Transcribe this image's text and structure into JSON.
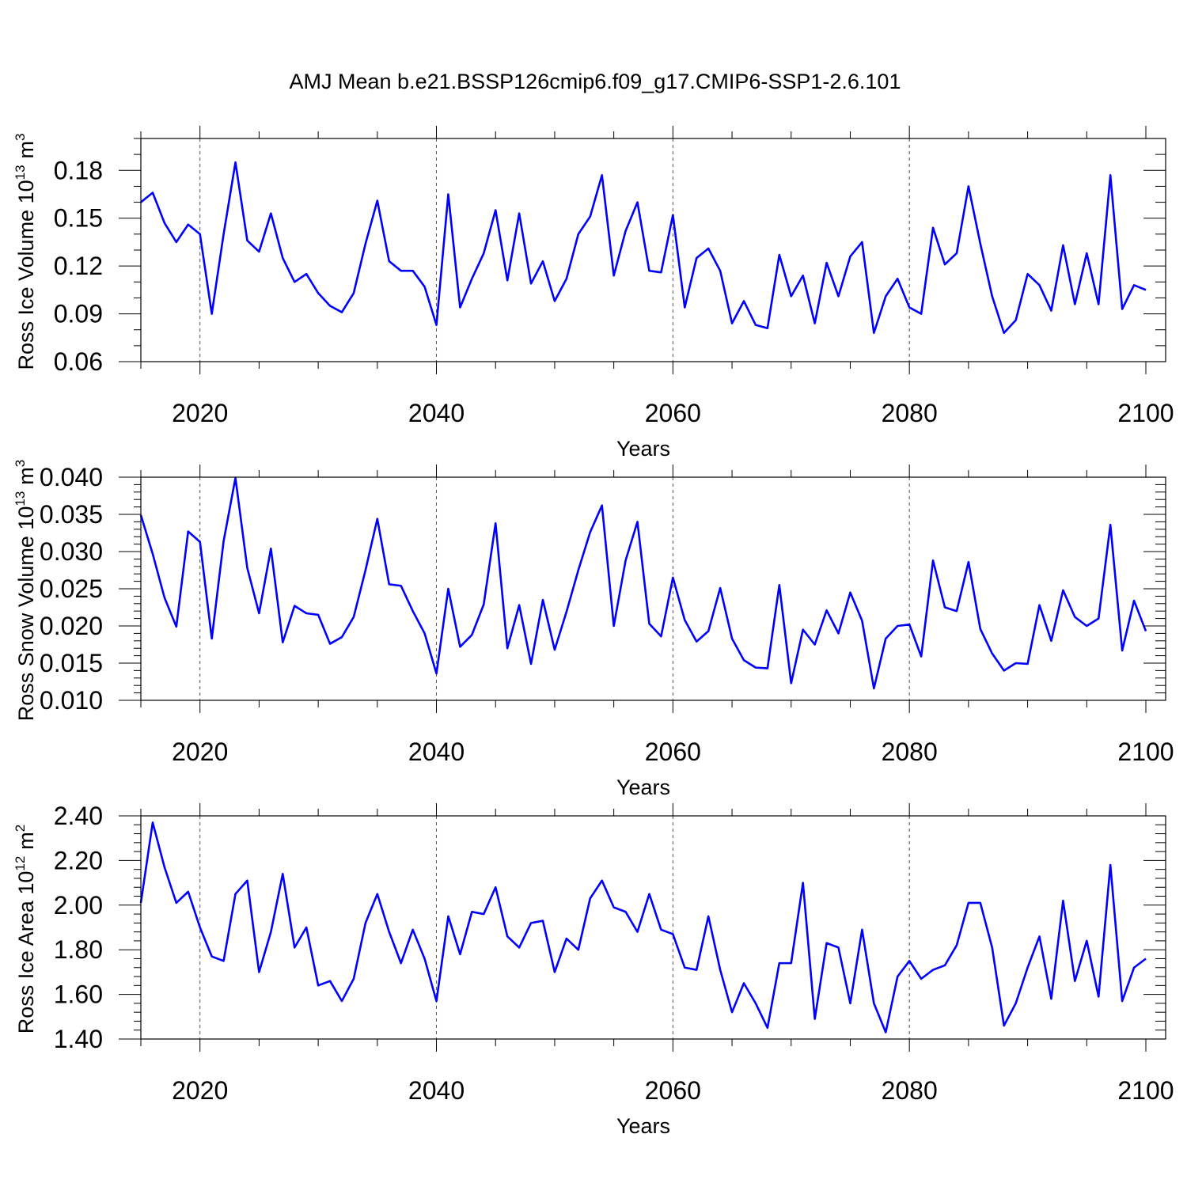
{
  "title": "AMJ Mean b.e21.BSSP126cmip6.f09_g17.CMIP6-SSP1-2.6.101",
  "chart_data": [
    {
      "type": "line",
      "ylabel_main": "Ross Ice Volume 10",
      "ylabel_exp": "13",
      "ylabel_unit": "m",
      "ylabel_unit_exp": "3",
      "xlabel": "Years",
      "xlim": [
        2015,
        2100
      ],
      "ylim": [
        0.06,
        0.2
      ],
      "yticks": [
        0.06,
        0.09,
        0.12,
        0.15,
        0.18
      ],
      "ytick_labels": [
        "0.06",
        "0.09",
        "0.12",
        "0.15",
        "0.18"
      ],
      "yminor_step": 0.01,
      "xticks": [
        2020,
        2040,
        2060,
        2080,
        2100
      ],
      "xtick_labels": [
        "2020",
        "2040",
        "2060",
        "2080",
        "2100"
      ],
      "line_color": "#0000ff",
      "x_start": 2015,
      "values": [
        0.16,
        0.166,
        0.147,
        0.135,
        0.146,
        0.14,
        0.09,
        0.14,
        0.185,
        0.136,
        0.129,
        0.153,
        0.125,
        0.11,
        0.115,
        0.103,
        0.095,
        0.091,
        0.103,
        0.134,
        0.161,
        0.123,
        0.117,
        0.117,
        0.107,
        0.083,
        0.165,
        0.094,
        0.112,
        0.128,
        0.155,
        0.111,
        0.153,
        0.109,
        0.123,
        0.098,
        0.112,
        0.14,
        0.151,
        0.177,
        0.114,
        0.142,
        0.16,
        0.117,
        0.116,
        0.152,
        0.094,
        0.125,
        0.131,
        0.117,
        0.084,
        0.098,
        0.083,
        0.081,
        0.127,
        0.101,
        0.114,
        0.084,
        0.122,
        0.101,
        0.126,
        0.135,
        0.078,
        0.101,
        0.112,
        0.094,
        0.09,
        0.144,
        0.121,
        0.128,
        0.17,
        0.134,
        0.101,
        0.078,
        0.086,
        0.115,
        0.108,
        0.092,
        0.133,
        0.096,
        0.128,
        0.096,
        0.177,
        0.093,
        0.108,
        0.105
      ]
    },
    {
      "type": "line",
      "ylabel_main": "Ross Snow Volume 10",
      "ylabel_exp": "13",
      "ylabel_unit": "m",
      "ylabel_unit_exp": "3",
      "xlabel": "Years",
      "xlim": [
        2015,
        2100
      ],
      "ylim": [
        0.01,
        0.04
      ],
      "yticks": [
        0.01,
        0.015,
        0.02,
        0.025,
        0.03,
        0.035,
        0.04
      ],
      "ytick_labels": [
        "0.010",
        "0.015",
        "0.020",
        "0.025",
        "0.030",
        "0.035",
        "0.040"
      ],
      "yminor_step": 0.001,
      "xticks": [
        2020,
        2040,
        2060,
        2080,
        2100
      ],
      "xtick_labels": [
        "2020",
        "2040",
        "2060",
        "2080",
        "2100"
      ],
      "line_color": "#0000ff",
      "x_start": 2015,
      "values": [
        0.0349,
        0.0297,
        0.0238,
        0.0199,
        0.0327,
        0.0313,
        0.0183,
        0.0314,
        0.0399,
        0.0278,
        0.0217,
        0.0304,
        0.0178,
        0.0227,
        0.0217,
        0.0215,
        0.0176,
        0.0185,
        0.0212,
        0.0275,
        0.0344,
        0.0256,
        0.0254,
        0.022,
        0.019,
        0.0136,
        0.025,
        0.0172,
        0.0188,
        0.0229,
        0.0338,
        0.017,
        0.0228,
        0.0149,
        0.0235,
        0.0168,
        0.0219,
        0.0275,
        0.0326,
        0.0362,
        0.02,
        0.0288,
        0.034,
        0.0203,
        0.0186,
        0.0265,
        0.0208,
        0.0179,
        0.0193,
        0.0251,
        0.0183,
        0.0154,
        0.0144,
        0.0143,
        0.0255,
        0.0123,
        0.0195,
        0.0175,
        0.0221,
        0.019,
        0.0245,
        0.0207,
        0.0116,
        0.0183,
        0.02,
        0.0202,
        0.0159,
        0.0288,
        0.0225,
        0.022,
        0.0286,
        0.0196,
        0.0163,
        0.014,
        0.015,
        0.0149,
        0.0228,
        0.018,
        0.0248,
        0.0212,
        0.02,
        0.021,
        0.0336,
        0.0167,
        0.0234,
        0.0193
      ]
    },
    {
      "type": "line",
      "ylabel_main": "Ross Ice Area 10",
      "ylabel_exp": "12",
      "ylabel_unit": "m",
      "ylabel_unit_exp": "2",
      "xlabel": "Years",
      "xlim": [
        2015,
        2100
      ],
      "ylim": [
        1.4,
        2.4
      ],
      "yticks": [
        1.4,
        1.6,
        1.8,
        2.0,
        2.2,
        2.4
      ],
      "ytick_labels": [
        "1.40",
        "1.60",
        "1.80",
        "2.00",
        "2.20",
        "2.40"
      ],
      "yminor_step": 0.04,
      "xticks": [
        2020,
        2040,
        2060,
        2080,
        2100
      ],
      "xtick_labels": [
        "2020",
        "2040",
        "2060",
        "2080",
        "2100"
      ],
      "line_color": "#0000ff",
      "x_start": 2015,
      "values": [
        2.01,
        2.37,
        2.17,
        2.01,
        2.06,
        1.9,
        1.77,
        1.75,
        2.05,
        2.11,
        1.7,
        1.88,
        2.14,
        1.81,
        1.9,
        1.64,
        1.66,
        1.57,
        1.67,
        1.92,
        2.05,
        1.88,
        1.74,
        1.89,
        1.76,
        1.57,
        1.95,
        1.78,
        1.97,
        1.96,
        2.08,
        1.86,
        1.81,
        1.92,
        1.93,
        1.7,
        1.85,
        1.8,
        2.03,
        2.11,
        1.99,
        1.97,
        1.88,
        2.05,
        1.89,
        1.87,
        1.72,
        1.71,
        1.95,
        1.71,
        1.52,
        1.65,
        1.56,
        1.45,
        1.74,
        1.74,
        2.1,
        1.49,
        1.83,
        1.81,
        1.56,
        1.89,
        1.56,
        1.43,
        1.68,
        1.75,
        1.67,
        1.71,
        1.73,
        1.82,
        2.01,
        2.01,
        1.81,
        1.46,
        1.56,
        1.72,
        1.86,
        1.58,
        2.02,
        1.66,
        1.84,
        1.59,
        2.18,
        1.57,
        1.72,
        1.76
      ]
    }
  ]
}
